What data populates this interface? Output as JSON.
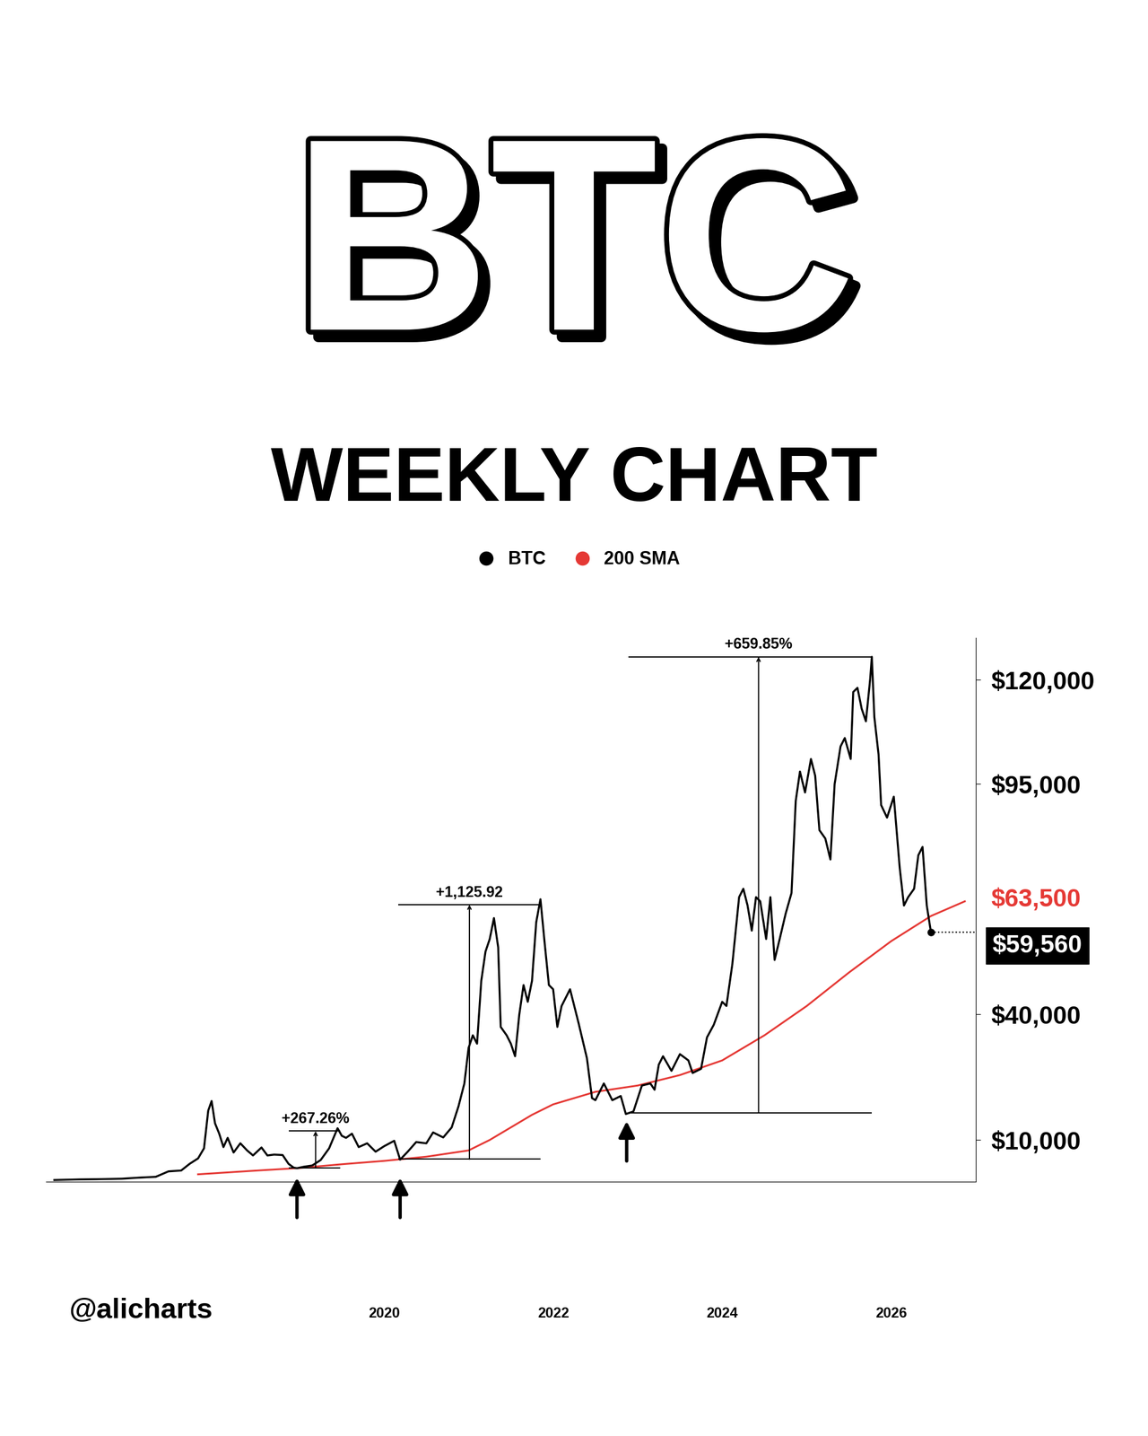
{
  "chart_data": {
    "type": "line",
    "title": "BTC",
    "subtitle": "WEEKLY CHART",
    "credit": "@alicharts",
    "legend": "upper center",
    "grid": false,
    "xlim": [
      2016.0,
      2027.0
    ],
    "xticks": [
      2020,
      2022,
      2024,
      2026
    ],
    "ylim": [
      0,
      130000
    ],
    "yticks": [
      {
        "value": 10000,
        "label": "$10,000"
      },
      {
        "value": 40000,
        "label": "$40,000"
      },
      {
        "value": 95000,
        "label": "$95,000"
      },
      {
        "value": 120000,
        "label": "$120,000"
      }
    ],
    "series": [
      {
        "name": "BTC",
        "color": "#000000",
        "x": [
          2016.1,
          2016.4,
          2016.6,
          2016.9,
          2017.1,
          2017.3,
          2017.45,
          2017.6,
          2017.7,
          2017.8,
          2017.87,
          2017.92,
          2017.96,
          2018.0,
          2018.05,
          2018.1,
          2018.15,
          2018.22,
          2018.3,
          2018.38,
          2018.45,
          2018.55,
          2018.62,
          2018.7,
          2018.8,
          2018.87,
          2018.93,
          2018.97,
          2019.05,
          2019.15,
          2019.25,
          2019.35,
          2019.45,
          2019.5,
          2019.55,
          2019.62,
          2019.7,
          2019.8,
          2019.9,
          2020.0,
          2020.12,
          2020.19,
          2020.28,
          2020.38,
          2020.5,
          2020.58,
          2020.7,
          2020.8,
          2020.88,
          2020.95,
          2021.0,
          2021.05,
          2021.1,
          2021.15,
          2021.2,
          2021.25,
          2021.3,
          2021.35,
          2021.38,
          2021.45,
          2021.5,
          2021.55,
          2021.6,
          2021.65,
          2021.7,
          2021.75,
          2021.8,
          2021.85,
          2021.9,
          2021.95,
          2022.0,
          2022.05,
          2022.1,
          2022.2,
          2022.3,
          2022.4,
          2022.46,
          2022.5,
          2022.6,
          2022.7,
          2022.8,
          2022.86,
          2022.95,
          2023.05,
          2023.15,
          2023.2,
          2023.25,
          2023.3,
          2023.4,
          2023.5,
          2023.6,
          2023.65,
          2023.75,
          2023.82,
          2023.9,
          2024.0,
          2024.05,
          2024.12,
          2024.2,
          2024.25,
          2024.3,
          2024.35,
          2024.4,
          2024.45,
          2024.52,
          2024.57,
          2024.62,
          2024.68,
          2024.75,
          2024.82,
          2024.87,
          2024.92,
          2024.98,
          2025.05,
          2025.1,
          2025.15,
          2025.22,
          2025.28,
          2025.33,
          2025.4,
          2025.45,
          2025.52,
          2025.55,
          2025.6,
          2025.65,
          2025.7,
          2025.75,
          2025.77,
          2025.8,
          2025.85,
          2025.88,
          2025.95,
          2026.03,
          2026.1,
          2026.15,
          2026.2,
          2026.27,
          2026.32,
          2026.37,
          2026.42,
          2026.47
        ],
        "values": [
          430,
          580,
          620,
          750,
          1000,
          1200,
          2500,
          2700,
          4300,
          5600,
          8000,
          17000,
          19300,
          14000,
          11500,
          8300,
          10500,
          7000,
          9200,
          7500,
          6300,
          8200,
          6300,
          6500,
          6400,
          4300,
          3400,
          3250,
          3600,
          3900,
          5200,
          8000,
          12800,
          11000,
          10500,
          11500,
          8300,
          9200,
          7200,
          8500,
          9800,
          5300,
          7200,
          9500,
          9200,
          11800,
          10600,
          13000,
          18000,
          23500,
          32000,
          35000,
          33000,
          48000,
          55000,
          58000,
          63000,
          56000,
          37000,
          35000,
          33000,
          30000,
          40000,
          47000,
          43000,
          48000,
          62000,
          67500,
          57000,
          47000,
          46000,
          37000,
          42000,
          46000,
          38000,
          29500,
          20000,
          19500,
          23500,
          19500,
          20500,
          16200,
          16800,
          23000,
          23500,
          22000,
          28000,
          30000,
          26500,
          30500,
          29000,
          26000,
          27000,
          34500,
          37500,
          43000,
          42000,
          52000,
          68000,
          70000,
          66000,
          60000,
          68000,
          67000,
          58000,
          68000,
          53000,
          58000,
          64000,
          69000,
          91000,
          98000,
          93000,
          101000,
          97000,
          84000,
          82000,
          77000,
          95000,
          104000,
          106000,
          101000,
          117000,
          118000,
          113000,
          110000,
          120000,
          125400,
          111000,
          102000,
          90000,
          87000,
          92000,
          75000,
          66000,
          68000,
          70000,
          78000,
          80000,
          66000,
          59560
        ]
      },
      {
        "name": "200 SMA",
        "color": "#e53935",
        "x": [
          2017.8,
          2018.5,
          2019.0,
          2019.5,
          2020.0,
          2020.5,
          2021.0,
          2021.25,
          2021.5,
          2021.75,
          2022.0,
          2022.5,
          2023.0,
          2023.5,
          2024.0,
          2024.5,
          2025.0,
          2025.5,
          2026.0,
          2026.47,
          2026.87
        ],
        "values": [
          1800,
          2700,
          3300,
          4200,
          5000,
          6000,
          7500,
          10000,
          13000,
          16000,
          18500,
          21500,
          23000,
          25500,
          29000,
          35000,
          42000,
          50000,
          57500,
          63500,
          67000
        ]
      }
    ],
    "annotations": [
      {
        "text": "$63,500",
        "value": 63500,
        "series": "200 SMA"
      },
      {
        "text": "$59,560",
        "value": 59560,
        "series": "BTC"
      }
    ],
    "measures": [
      {
        "label": "+267.26%",
        "x_range": [
          2018.87,
          2019.48
        ],
        "arrow_x": 2019.19,
        "low": 3300,
        "high": 12120
      },
      {
        "label": "+1,125.92",
        "x_range": [
          2020.17,
          2021.85
        ],
        "arrow_x": 2021.01,
        "low": 5400,
        "high": 66200
      },
      {
        "label": "+659.85%",
        "x_range": [
          2022.89,
          2025.77
        ],
        "arrow_x": 2024.43,
        "low": 16500,
        "high": 125400
      }
    ],
    "arrows": [
      {
        "x": 2018.97,
        "y": 1000
      },
      {
        "x": 2020.19,
        "y": 1000
      },
      {
        "x": 2022.87,
        "y": 14500
      }
    ]
  }
}
